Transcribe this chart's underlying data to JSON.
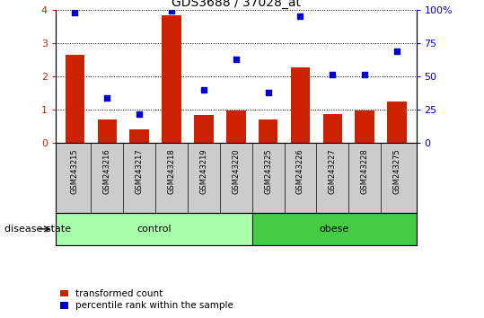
{
  "title": "GDS3688 / 37028_at",
  "samples": [
    "GSM243215",
    "GSM243216",
    "GSM243217",
    "GSM243218",
    "GSM243219",
    "GSM243220",
    "GSM243225",
    "GSM243226",
    "GSM243227",
    "GSM243228",
    "GSM243275"
  ],
  "transformed_count": [
    2.65,
    0.72,
    0.42,
    3.82,
    0.84,
    0.97,
    0.72,
    2.26,
    0.87,
    0.98,
    1.25
  ],
  "percentile_right": [
    98,
    34,
    22,
    99,
    40,
    63,
    38,
    95,
    51,
    51,
    69
  ],
  "control_count": 6,
  "obese_count": 5,
  "bar_color": "#cc2200",
  "scatter_color": "#0000cc",
  "control_color": "#aaffaa",
  "obese_color": "#44cc44",
  "label_area_color": "#cccccc",
  "ylim_left": [
    0,
    4
  ],
  "ylim_right": [
    0,
    100
  ],
  "yticks_left": [
    0,
    1,
    2,
    3,
    4
  ],
  "yticks_right": [
    0,
    25,
    50,
    75,
    100
  ],
  "yticklabels_right": [
    "0",
    "25",
    "50",
    "75",
    "100%"
  ],
  "legend_labels": [
    "transformed count",
    "percentile rank within the sample"
  ],
  "disease_state_label": "disease state",
  "control_label": "control",
  "obese_label": "obese"
}
